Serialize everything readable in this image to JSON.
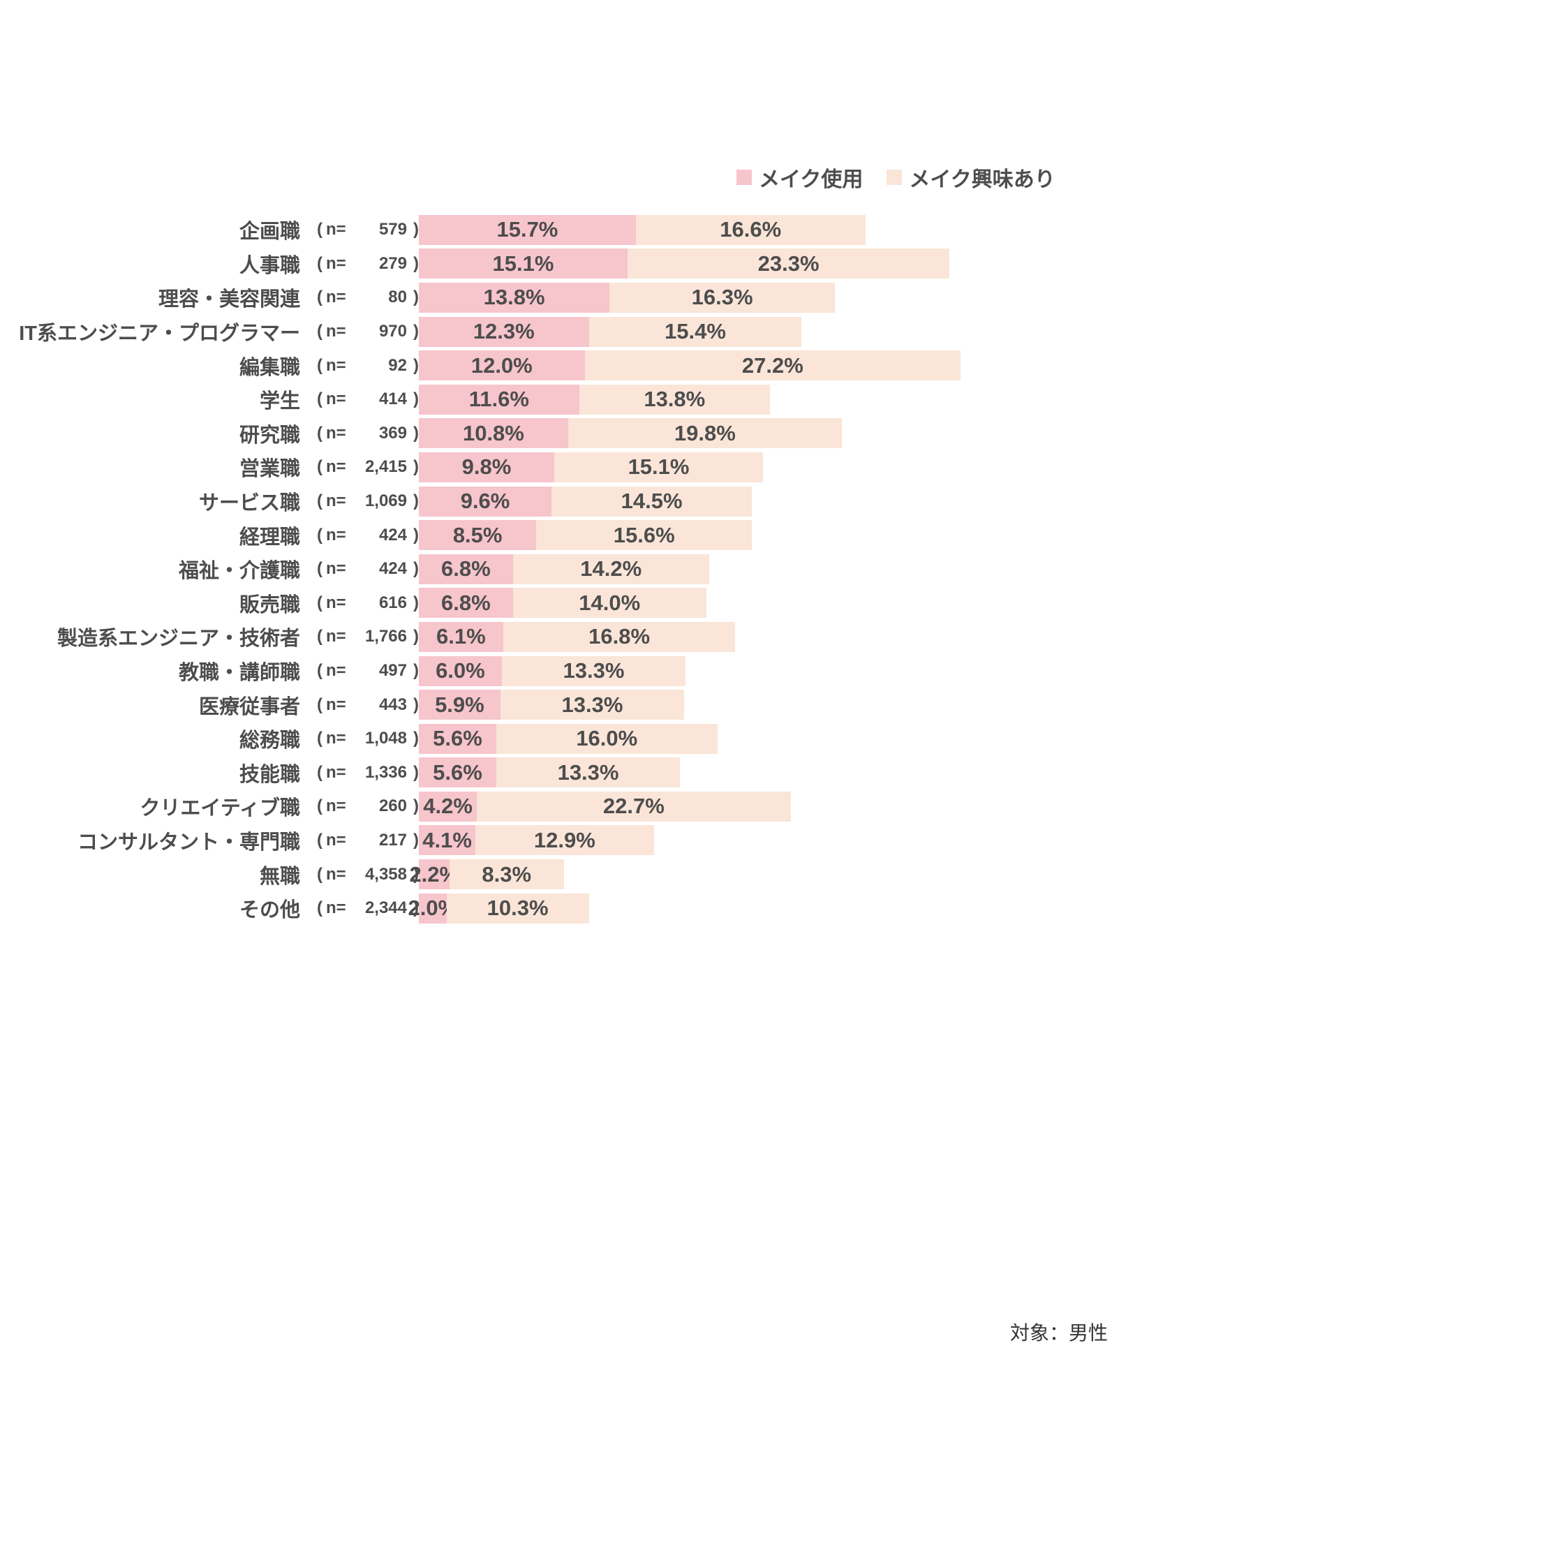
{
  "colors": {
    "usage": "#f7c5cc",
    "interest": "#fae5d8",
    "text": "#4d4d4d"
  },
  "legend": {
    "items": [
      {
        "label": "メイク使用",
        "color": "#f7c5cc"
      },
      {
        "label": "メイク興味あり",
        "color": "#fae5d8"
      }
    ]
  },
  "footnote": "対象：男性",
  "n_prefix": "n=",
  "paren_open": "(",
  "paren_close": ")",
  "chart_data": {
    "type": "bar",
    "orientation": "horizontal",
    "stacked": true,
    "value_suffix": "%",
    "xlim": [
      0,
      40
    ],
    "grid": false,
    "legend_position": "top-right",
    "categories": [
      "企画職",
      "人事職",
      "理容・美容関連",
      "IT系エンジニア・プログラマー",
      "編集職",
      "学生",
      "研究職",
      "営業職",
      "サービス職",
      "経理職",
      "福祉・介護職",
      "販売職",
      "製造系エンジニア・技術者",
      "教職・講師職",
      "医療従事者",
      "総務職",
      "技能職",
      "クリエイティブ職",
      "コンサルタント・専門職",
      "無職",
      "その他"
    ],
    "n_values": [
      "579",
      "279",
      "80",
      "970",
      "92",
      "414",
      "369",
      "2,415",
      "1,069",
      "424",
      "424",
      "616",
      "1,766",
      "497",
      "443",
      "1,048",
      "1,336",
      "260",
      "217",
      "4,358",
      "2,344"
    ],
    "series": [
      {
        "name": "メイク使用",
        "values": [
          15.7,
          15.1,
          13.8,
          12.3,
          12.0,
          11.6,
          10.8,
          9.8,
          9.6,
          8.5,
          6.8,
          6.8,
          6.1,
          6.0,
          5.9,
          5.6,
          5.6,
          4.2,
          4.1,
          2.2,
          2.0
        ]
      },
      {
        "name": "メイク興味あり",
        "values": [
          16.6,
          23.3,
          16.3,
          15.4,
          27.2,
          13.8,
          19.8,
          15.1,
          14.5,
          15.6,
          14.2,
          14.0,
          16.8,
          13.3,
          13.3,
          16.0,
          13.3,
          22.7,
          12.9,
          8.3,
          10.3
        ]
      }
    ]
  }
}
